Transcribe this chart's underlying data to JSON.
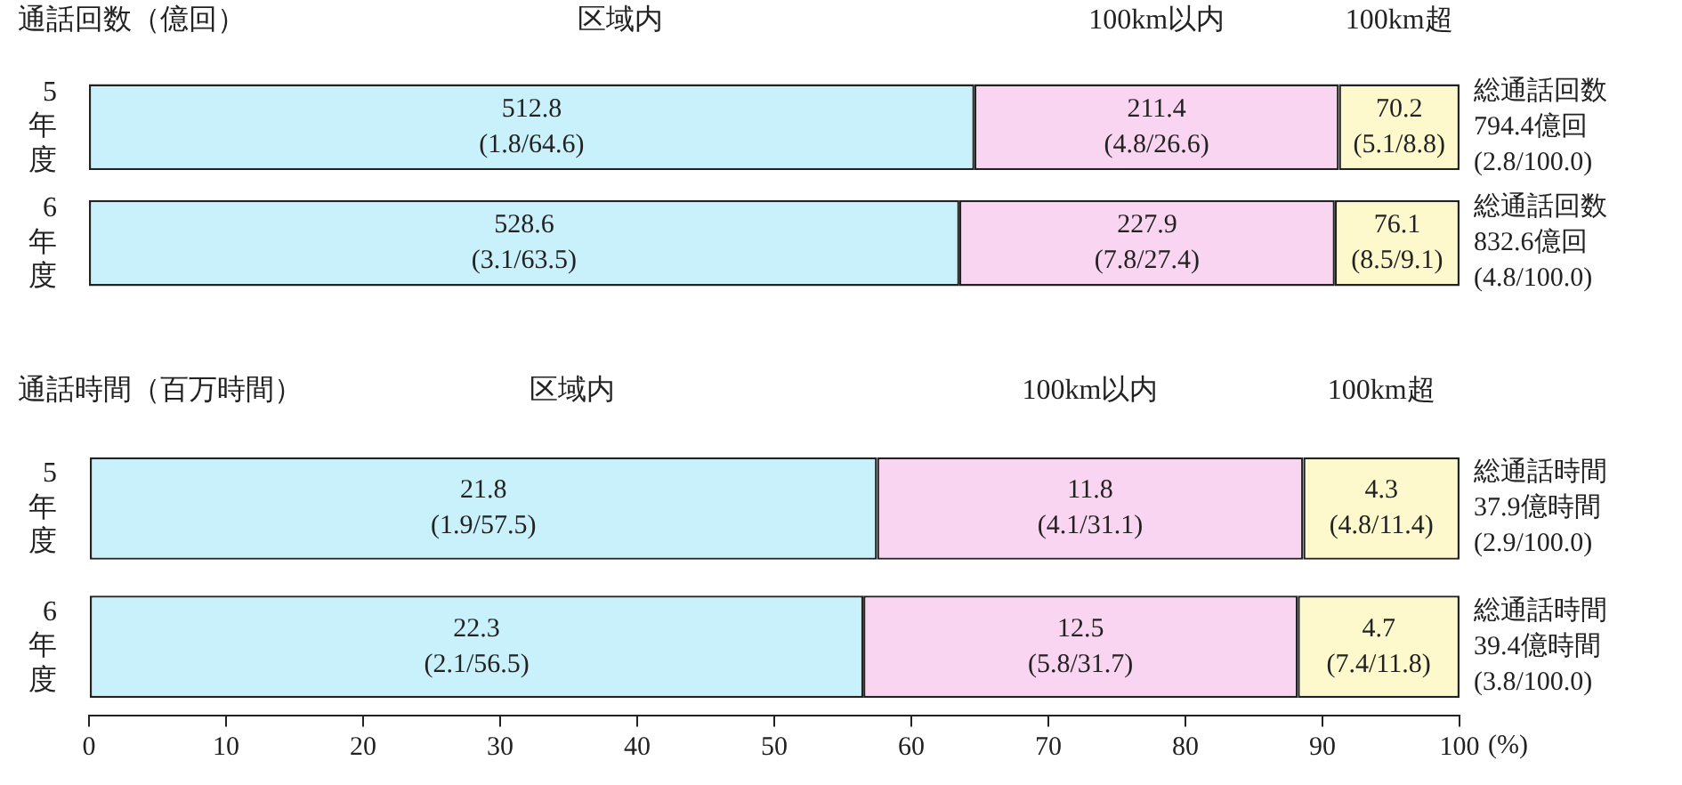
{
  "chart_data": [
    {
      "type": "bar",
      "orientation": "horizontal",
      "stacked": true,
      "title": "通話回数（億回）",
      "categories": [
        "5年度",
        "6年度"
      ],
      "xlim": [
        0,
        100
      ],
      "xticks": [
        0,
        10,
        20,
        30,
        40,
        50,
        60,
        70,
        80,
        90,
        100
      ],
      "tick_labels": "y",
      "grid": false,
      "legend": false,
      "series": [
        {
          "name": "区域内",
          "color": "#c9f1fb",
          "values": [
            64.6,
            63.5
          ],
          "value_labels": [
            "512.8\n(1.8/64.6)",
            "528.6\n(3.1/63.5)"
          ]
        },
        {
          "name": "100km以内",
          "color": "#f9d5f1",
          "values": [
            26.6,
            27.4
          ],
          "value_labels": [
            "211.4\n(4.8/26.6)",
            "227.9\n(7.8/27.4)"
          ]
        },
        {
          "name": "100km超",
          "color": "#fdf9cc",
          "values": [
            8.8,
            9.1
          ],
          "value_labels": [
            "70.2\n(5.1/8.8)",
            "76.1\n(8.5/9.1)"
          ]
        }
      ],
      "annotations": [
        "総通話回数\n794.4億回\n(2.8/100.0)",
        "総通話回数\n832.6億回\n(4.8/100.0)"
      ]
    },
    {
      "type": "bar",
      "orientation": "horizontal",
      "stacked": true,
      "title": "通話時間（百万時間）",
      "categories": [
        "5年度",
        "6年度"
      ],
      "xlim": [
        0,
        100
      ],
      "xticks": [
        0,
        10,
        20,
        30,
        40,
        50,
        60,
        70,
        80,
        90,
        100
      ],
      "xlabel": "(%)",
      "grid": false,
      "legend": false,
      "series": [
        {
          "name": "区域内",
          "color": "#c9f1fb",
          "values": [
            57.5,
            56.5
          ],
          "value_labels": [
            "21.8\n(1.9/57.5)",
            "22.3\n(2.1/56.5)"
          ]
        },
        {
          "name": "100km以内",
          "color": "#f9d5f1",
          "values": [
            31.1,
            31.7
          ],
          "value_labels": [
            "11.8\n(4.1/31.1)",
            "12.5\n(5.8/31.7)"
          ]
        },
        {
          "name": "100km超",
          "color": "#fdf9cc",
          "values": [
            11.4,
            11.8
          ],
          "value_labels": [
            "4.3\n(4.8/11.4)",
            "4.7\n(7.4/11.8)"
          ]
        }
      ],
      "annotations": [
        "総通話時間\n37.9億時間\n(2.9/100.0)",
        "総通話時間\n39.4億時間\n(3.8/100.0)"
      ]
    }
  ]
}
